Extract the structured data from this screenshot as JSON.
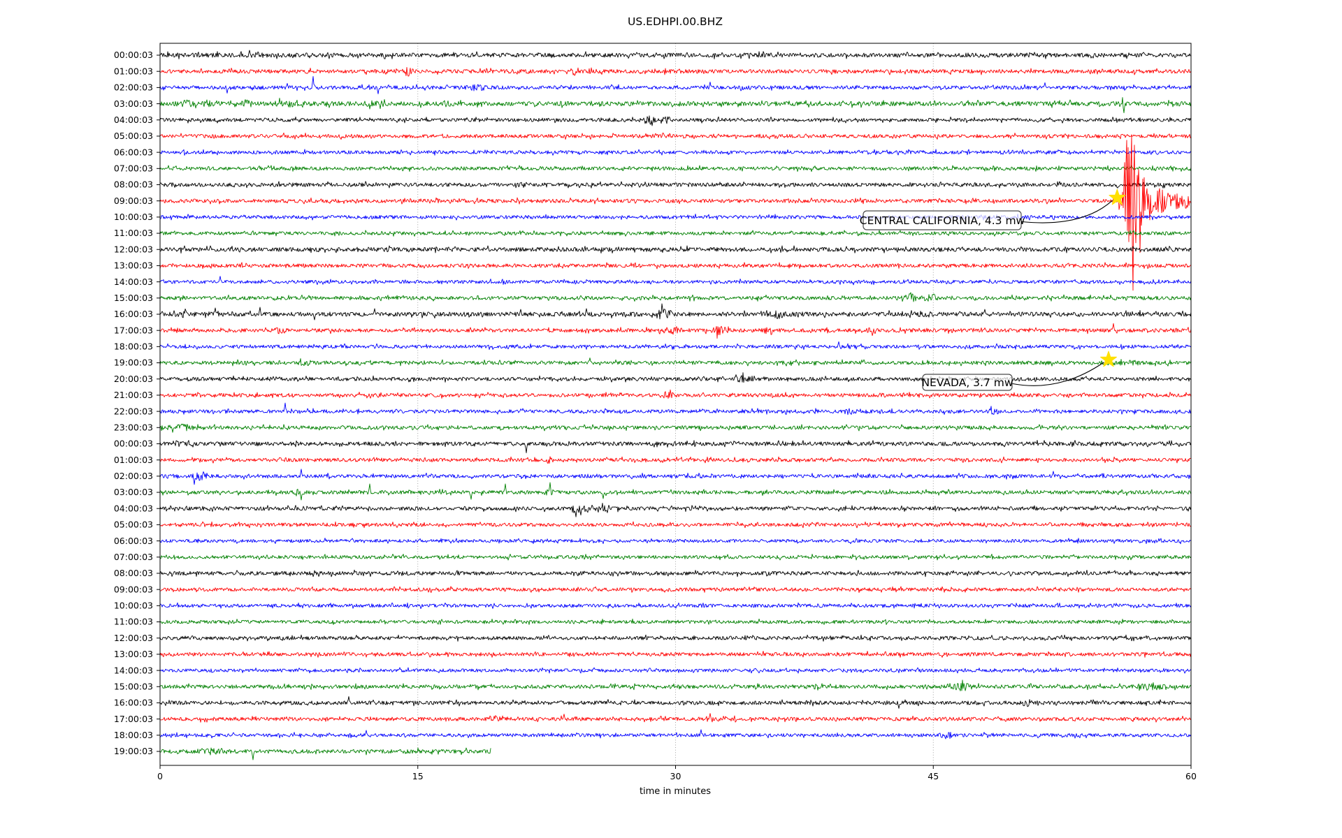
{
  "chart_data": {
    "type": "line",
    "subtype": "seismogram-dayplot",
    "title": "US.EDHPI.00.BHZ",
    "xlabel": "time in minutes",
    "xlim": [
      0,
      60
    ],
    "x_ticks": [
      "0",
      "15",
      "30",
      "45",
      "60"
    ],
    "x_tick_values": [
      0,
      15,
      30,
      45,
      60
    ],
    "grid": "dotted vertical lines at 15, 30, 45",
    "legend_position": "none",
    "trace_color_cycle": [
      "#000000",
      "#ff0000",
      "#0000ff",
      "#008000"
    ],
    "marker_color": "#ffe000",
    "rows": [
      {
        "label": "00:00:03",
        "color": "#000000",
        "base": 3.0,
        "bursts": [
          [
            5.6,
            0.4,
            0.7
          ]
        ],
        "spikes": [
          [
            5.2,
            7
          ]
        ]
      },
      {
        "label": "01:00:03",
        "color": "#ff0000",
        "base": 2.8,
        "bursts": [
          [
            14.4,
            0.25,
            1.6
          ],
          [
            24.1,
            0.2,
            1.2
          ],
          [
            25.1,
            0.2,
            1.3
          ]
        ]
      },
      {
        "label": "02:00:03",
        "color": "#0000ff",
        "base": 2.6,
        "bursts": [
          [
            18.4,
            0.5,
            1.1
          ]
        ],
        "spikes": [
          [
            3.9,
            -8
          ],
          [
            7.4,
            6
          ],
          [
            8.9,
            16
          ],
          [
            12.7,
            -9
          ],
          [
            32.0,
            8
          ],
          [
            51.5,
            7
          ]
        ]
      },
      {
        "label": "03:00:03",
        "color": "#008000",
        "base": 3.2,
        "bursts": [
          [
            1.7,
            0.5,
            0.9
          ],
          [
            3.0,
            0.4,
            0.8
          ],
          [
            5.0,
            0.4,
            0.8
          ],
          [
            7.3,
            0.5,
            0.8
          ],
          [
            12.5,
            0.6,
            0.6
          ],
          [
            16.8,
            0.4,
            0.7
          ]
        ],
        "spikes": [
          [
            56.05,
            20
          ],
          [
            56.1,
            -13
          ]
        ]
      },
      {
        "label": "04:00:03",
        "color": "#000000",
        "base": 2.5,
        "bursts": [
          [
            28.4,
            0.3,
            2.2
          ],
          [
            29.5,
            0.25,
            1.7
          ]
        ]
      },
      {
        "label": "05:00:03",
        "color": "#ff0000",
        "base": 2.6
      },
      {
        "label": "06:00:03",
        "color": "#0000ff",
        "base": 2.4
      },
      {
        "label": "07:00:03",
        "color": "#008000",
        "base": 2.5
      },
      {
        "label": "08:00:03",
        "color": "#000000",
        "base": 2.7
      },
      {
        "label": "09:00:03",
        "color": "#ff0000",
        "base": 2.6,
        "eq": {
          "onset": 55.72,
          "peak": 56.42,
          "rise_sigma": 0.2,
          "fall_sigma": 0.45,
          "dense_amp": 105,
          "coda_amp": 34,
          "coda_tau": 1.6,
          "floor": 4,
          "spikes": [
            [
              56.05,
              28
            ],
            [
              56.08,
              -22
            ],
            [
              56.14,
              55
            ],
            [
              56.2,
              -65
            ],
            [
              56.26,
              120
            ],
            [
              56.3,
              193
            ],
            [
              56.33,
              -95
            ],
            [
              56.37,
              170
            ],
            [
              56.41,
              -130
            ],
            [
              56.45,
              150
            ],
            [
              56.5,
              -110
            ],
            [
              56.55,
              95
            ],
            [
              56.62,
              -128
            ],
            [
              56.7,
              80
            ],
            [
              56.8,
              -60
            ],
            [
              56.95,
              45
            ],
            [
              57.1,
              -35
            ]
          ]
        }
      },
      {
        "label": "10:00:03",
        "color": "#0000ff",
        "base": 2.5
      },
      {
        "label": "11:00:03",
        "color": "#008000",
        "base": 2.4
      },
      {
        "label": "12:00:03",
        "color": "#000000",
        "base": 3.0
      },
      {
        "label": "13:00:03",
        "color": "#ff0000",
        "base": 2.6
      },
      {
        "label": "14:00:03",
        "color": "#0000ff",
        "base": 2.4,
        "spikes": [
          [
            3.5,
            8
          ]
        ]
      },
      {
        "label": "15:00:03",
        "color": "#008000",
        "base": 2.6,
        "bursts": [
          [
            43.8,
            0.4,
            2.2
          ],
          [
            44.9,
            0.3,
            1.5
          ]
        ]
      },
      {
        "label": "16:00:03",
        "color": "#000000",
        "base": 3.1,
        "bursts": [
          [
            1.5,
            0.35,
            1.2
          ],
          [
            29.3,
            0.45,
            1.8
          ],
          [
            36.0,
            0.35,
            1.3
          ],
          [
            44.5,
            0.3,
            1.0
          ]
        ],
        "spikes": [
          [
            3.2,
            9
          ],
          [
            5.8,
            10
          ],
          [
            9.0,
            -8
          ],
          [
            12.5,
            8
          ],
          [
            21.0,
            7
          ],
          [
            24.8,
            8
          ],
          [
            48.0,
            7
          ]
        ]
      },
      {
        "label": "17:00:03",
        "color": "#ff0000",
        "base": 2.6,
        "bursts": [
          [
            7.0,
            0.25,
            1.2
          ],
          [
            29.8,
            0.45,
            1.6
          ],
          [
            32.5,
            0.45,
            1.5
          ],
          [
            35.5,
            0.35,
            1.4
          ],
          [
            41.5,
            0.25,
            1.2
          ]
        ],
        "spikes": [
          [
            55.5,
            10
          ]
        ]
      },
      {
        "label": "18:00:03",
        "color": "#0000ff",
        "base": 2.4,
        "spikes": [
          [
            39.5,
            7
          ]
        ]
      },
      {
        "label": "19:00:03",
        "color": "#008000",
        "base": 2.6,
        "bursts": [
          [
            8.5,
            0.35,
            1.0
          ],
          [
            56.2,
            1.2,
            0.5
          ]
        ],
        "spikes": [
          [
            25.0,
            7
          ]
        ]
      },
      {
        "label": "20:00:03",
        "color": "#000000",
        "base": 2.6,
        "bursts": [
          [
            6.5,
            0.35,
            0.8
          ],
          [
            34.0,
            0.45,
            1.1
          ]
        ]
      },
      {
        "label": "21:00:03",
        "color": "#ff0000",
        "base": 2.6,
        "bursts": [
          [
            29.5,
            0.35,
            1.1
          ]
        ]
      },
      {
        "label": "22:00:03",
        "color": "#0000ff",
        "base": 2.5,
        "bursts": [
          [
            40.0,
            0.45,
            1.0
          ],
          [
            48.5,
            0.3,
            0.9
          ]
        ],
        "spikes": [
          [
            7.3,
            12
          ]
        ]
      },
      {
        "label": "23:00:03",
        "color": "#008000",
        "base": 2.6,
        "bursts": [
          [
            1.3,
            0.7,
            1.1
          ]
        ]
      },
      {
        "label": "00:00:03",
        "color": "#000000",
        "base": 2.8,
        "bursts": [
          [
            1.0,
            0.5,
            0.8
          ]
        ],
        "spikes": [
          [
            21.3,
            -13
          ]
        ]
      },
      {
        "label": "01:00:03",
        "color": "#ff0000",
        "base": 2.5,
        "bursts": [
          [
            22.6,
            0.18,
            1.5
          ]
        ]
      },
      {
        "label": "02:00:03",
        "color": "#0000ff",
        "base": 2.5,
        "bursts": [
          [
            2.3,
            0.35,
            1.5
          ]
        ],
        "spikes": [
          [
            2.0,
            -12
          ],
          [
            8.2,
            10
          ],
          [
            52.0,
            7
          ]
        ]
      },
      {
        "label": "03:00:03",
        "color": "#008000",
        "base": 2.6,
        "bursts": [
          [
            8.0,
            0.3,
            1.1
          ],
          [
            22.6,
            0.3,
            1.2
          ]
        ],
        "spikes": [
          [
            8.2,
            -11
          ],
          [
            12.2,
            12
          ],
          [
            18.1,
            -10
          ],
          [
            20.1,
            12
          ],
          [
            22.7,
            14
          ],
          [
            25.8,
            -9
          ]
        ]
      },
      {
        "label": "04:00:03",
        "color": "#000000",
        "base": 2.6,
        "bursts": [
          [
            24.6,
            0.5,
            1.7
          ],
          [
            25.9,
            0.35,
            1.5
          ]
        ],
        "spikes": [
          [
            24.2,
            -12
          ]
        ]
      },
      {
        "label": "05:00:03",
        "color": "#ff0000",
        "base": 2.5
      },
      {
        "label": "06:00:03",
        "color": "#0000ff",
        "base": 2.3
      },
      {
        "label": "07:00:03",
        "color": "#008000",
        "base": 2.4
      },
      {
        "label": "08:00:03",
        "color": "#000000",
        "base": 2.7
      },
      {
        "label": "09:00:03",
        "color": "#ff0000",
        "base": 2.5
      },
      {
        "label": "10:00:03",
        "color": "#0000ff",
        "base": 2.4
      },
      {
        "label": "11:00:03",
        "color": "#008000",
        "base": 2.4
      },
      {
        "label": "12:00:03",
        "color": "#000000",
        "base": 2.6
      },
      {
        "label": "13:00:03",
        "color": "#ff0000",
        "base": 2.5
      },
      {
        "label": "14:00:03",
        "color": "#0000ff",
        "base": 2.3
      },
      {
        "label": "15:00:03",
        "color": "#008000",
        "base": 2.6,
        "bursts": [
          [
            38.0,
            0.25,
            1.1
          ],
          [
            46.5,
            0.6,
            1.8
          ],
          [
            57.5,
            0.7,
            1.5
          ]
        ]
      },
      {
        "label": "16:00:03",
        "color": "#000000",
        "base": 2.7,
        "bursts": [
          [
            50.5,
            0.35,
            1.1
          ]
        ],
        "spikes": [
          [
            11.0,
            9
          ],
          [
            43.0,
            -8
          ]
        ]
      },
      {
        "label": "17:00:03",
        "color": "#ff0000",
        "base": 2.6,
        "bursts": [
          [
            19.5,
            0.25,
            1.4
          ]
        ],
        "spikes": [
          [
            23.5,
            7
          ],
          [
            32.0,
            8
          ]
        ]
      },
      {
        "label": "18:00:03",
        "color": "#0000ff",
        "base": 2.4,
        "bursts": [
          [
            45.8,
            0.35,
            1.4
          ]
        ],
        "spikes": [
          [
            12.0,
            7
          ],
          [
            31.5,
            8
          ]
        ]
      },
      {
        "label": "19:00:03",
        "color": "#008000",
        "base": 2.8,
        "end": 19.25,
        "bursts": [
          [
            3.1,
            0.35,
            1.2
          ]
        ],
        "spikes": [
          [
            5.4,
            -12
          ]
        ]
      }
    ],
    "events": [
      {
        "label": "CENTRAL CALIFORNIA, 4.3 mw",
        "region": "CENTRAL CALIFORNIA",
        "magnitude": "4.3 mw",
        "row": 9,
        "row_label": "09:00:03",
        "minute": 55.7,
        "marker": "star"
      },
      {
        "label": "NEVADA, 3.7 mw",
        "region": "NEVADA",
        "magnitude": "3.7 mw",
        "row": 19,
        "row_label": "19:00:03",
        "minute": 55.2,
        "marker": "star"
      }
    ]
  }
}
